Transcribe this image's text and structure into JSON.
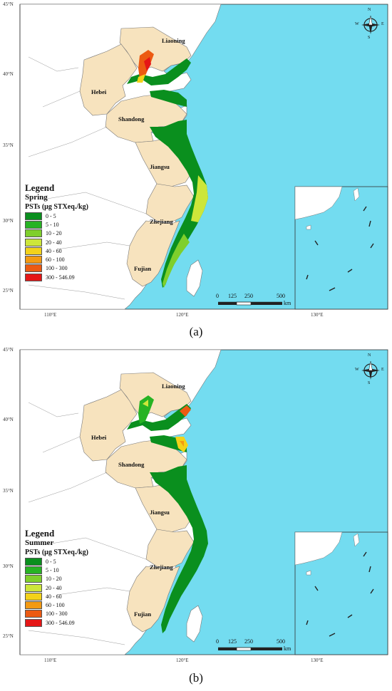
{
  "panels": [
    {
      "id": "a",
      "caption": "(a)",
      "legend": {
        "title": "Legend",
        "season": "Spring",
        "unit": "PSTs (μg STXeq./kg)",
        "classes": [
          {
            "label": "0 - 5",
            "color": "#0a8f1e"
          },
          {
            "label": "5 - 10",
            "color": "#27b324"
          },
          {
            "label": "10 - 20",
            "color": "#7fcf2c"
          },
          {
            "label": "20 - 40",
            "color": "#cde63a"
          },
          {
            "label": "40 - 60",
            "color": "#f3d21a"
          },
          {
            "label": "60 - 100",
            "color": "#f39a12"
          },
          {
            "label": "100 - 300",
            "color": "#ec5a12"
          },
          {
            "label": "300 - 546.09",
            "color": "#e51616"
          }
        ]
      }
    },
    {
      "id": "b",
      "caption": "(b)",
      "legend": {
        "title": "Legend",
        "season": "Summer",
        "unit": "PSTs (μg STXeq./kg)",
        "classes": [
          {
            "label": "0 - 5",
            "color": "#0a8f1e"
          },
          {
            "label": "5 - 10",
            "color": "#27b324"
          },
          {
            "label": "10 - 20",
            "color": "#7fcf2c"
          },
          {
            "label": "20 - 40",
            "color": "#cde63a"
          },
          {
            "label": "40 - 60",
            "color": "#f3d21a"
          },
          {
            "label": "60 - 100",
            "color": "#f39a12"
          },
          {
            "label": "100 - 300",
            "color": "#ec5a12"
          },
          {
            "label": "300 - 546.09",
            "color": "#e51616"
          }
        ]
      }
    }
  ],
  "provinces": [
    "Liaoning",
    "Hebei",
    "Shandong",
    "Jiangsu",
    "Zhejiang",
    "Fujian"
  ],
  "lat_labels": [
    "45°N",
    "40°N",
    "35°N",
    "30°N",
    "25°N"
  ],
  "lon_labels": [
    "110°E",
    "120°E",
    "130°E"
  ],
  "scale_bar": {
    "ticks": [
      "0",
      "125",
      "250",
      "500"
    ],
    "unit": "km"
  },
  "compass": {
    "n": "N",
    "s": "S",
    "e": "E",
    "w": "W"
  },
  "colors": {
    "sea": "#73dcf0",
    "land_province": "#f7e3be",
    "land_other": "#ffffff",
    "border": "#777777"
  }
}
